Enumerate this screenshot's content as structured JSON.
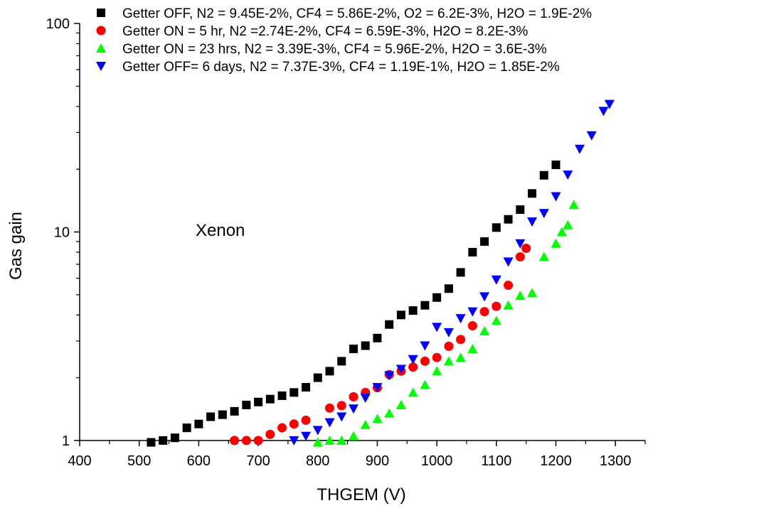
{
  "chart_data": {
    "type": "scatter",
    "xlabel": "THGEM (V)",
    "ylabel": "Gas gain",
    "xlim": [
      400,
      1350
    ],
    "ylim": [
      1,
      100
    ],
    "yscale": "log",
    "x_ticks": [
      "400",
      "500",
      "600",
      "700",
      "800",
      "900",
      "1000",
      "1100",
      "1200",
      "1300"
    ],
    "y_ticks": [
      "1",
      "10",
      "100"
    ],
    "annotation": "Xenon",
    "legend_position": "top",
    "series": [
      {
        "name": "Getter OFF,            N2 =  9.45E-2%, CF4 = 5.86E-2%, O2 = 6.2E-3%, H2O = 1.9E-2%",
        "marker": "square",
        "color": "#000000",
        "points": [
          [
            520,
            0.98
          ],
          [
            540,
            1.0
          ],
          [
            560,
            1.03
          ],
          [
            580,
            1.15
          ],
          [
            600,
            1.2
          ],
          [
            620,
            1.3
          ],
          [
            640,
            1.33
          ],
          [
            660,
            1.38
          ],
          [
            680,
            1.48
          ],
          [
            700,
            1.53
          ],
          [
            720,
            1.58
          ],
          [
            740,
            1.64
          ],
          [
            760,
            1.7
          ],
          [
            780,
            1.8
          ],
          [
            800,
            2.0
          ],
          [
            820,
            2.15
          ],
          [
            840,
            2.4
          ],
          [
            860,
            2.75
          ],
          [
            880,
            2.85
          ],
          [
            900,
            3.1
          ],
          [
            920,
            3.6
          ],
          [
            940,
            4.0
          ],
          [
            960,
            4.2
          ],
          [
            980,
            4.45
          ],
          [
            1000,
            4.85
          ],
          [
            1020,
            5.35
          ],
          [
            1040,
            6.4
          ],
          [
            1060,
            8.0
          ],
          [
            1080,
            9.0
          ],
          [
            1100,
            10.5
          ],
          [
            1120,
            11.5
          ],
          [
            1140,
            12.8
          ],
          [
            1160,
            15.3
          ],
          [
            1180,
            18.7
          ],
          [
            1200,
            21.0
          ]
        ]
      },
      {
        "name": "Getter ON = 5 hr,   N2 =2.74E-2%,  CF4 = 6.59E-3%, H2O = 8.2E-3%",
        "marker": "circle",
        "color": "#ff0000",
        "points": [
          [
            660,
            1.0
          ],
          [
            680,
            1.0
          ],
          [
            700,
            1.0
          ],
          [
            720,
            1.07
          ],
          [
            740,
            1.15
          ],
          [
            760,
            1.2
          ],
          [
            780,
            1.25
          ],
          [
            820,
            1.43
          ],
          [
            840,
            1.47
          ],
          [
            860,
            1.62
          ],
          [
            880,
            1.7
          ],
          [
            900,
            1.79
          ],
          [
            920,
            2.07
          ],
          [
            940,
            2.15
          ],
          [
            960,
            2.25
          ],
          [
            980,
            2.4
          ],
          [
            1000,
            2.5
          ],
          [
            1020,
            2.83
          ],
          [
            1040,
            3.05
          ],
          [
            1060,
            3.55
          ],
          [
            1080,
            4.15
          ],
          [
            1100,
            4.4
          ],
          [
            1120,
            5.55
          ],
          [
            1140,
            7.6
          ],
          [
            1150,
            8.35
          ]
        ]
      },
      {
        "name": "Getter ON = 23 hrs, N2 = 3.39E-3%,  CF4 = 5.96E-2%, H2O = 3.6E-3%",
        "marker": "triangle-up",
        "color": "#00ff00",
        "points": [
          [
            800,
            0.98
          ],
          [
            820,
            1.0
          ],
          [
            840,
            1.0
          ],
          [
            860,
            1.05
          ],
          [
            880,
            1.19
          ],
          [
            900,
            1.27
          ],
          [
            920,
            1.35
          ],
          [
            940,
            1.48
          ],
          [
            960,
            1.7
          ],
          [
            980,
            1.85
          ],
          [
            1000,
            2.15
          ],
          [
            1020,
            2.4
          ],
          [
            1040,
            2.5
          ],
          [
            1060,
            2.75
          ],
          [
            1080,
            3.35
          ],
          [
            1100,
            3.75
          ],
          [
            1120,
            4.45
          ],
          [
            1140,
            4.95
          ],
          [
            1160,
            5.1
          ],
          [
            1180,
            7.6
          ],
          [
            1200,
            8.8
          ],
          [
            1210,
            10.0
          ],
          [
            1220,
            10.8
          ],
          [
            1230,
            13.5
          ]
        ]
      },
      {
        "name": "Getter OFF= 6 days, N2 = 7.37E-3%, CF4 = 1.19E-1%, H2O = 1.85E-2%",
        "marker": "triangle-down",
        "color": "#0000ff",
        "points": [
          [
            760,
            1.0
          ],
          [
            780,
            1.05
          ],
          [
            800,
            1.12
          ],
          [
            820,
            1.22
          ],
          [
            840,
            1.3
          ],
          [
            860,
            1.42
          ],
          [
            880,
            1.6
          ],
          [
            900,
            1.8
          ],
          [
            920,
            2.05
          ],
          [
            940,
            2.2
          ],
          [
            960,
            2.45
          ],
          [
            980,
            2.85
          ],
          [
            1000,
            3.5
          ],
          [
            1020,
            3.3
          ],
          [
            1040,
            3.85
          ],
          [
            1060,
            4.15
          ],
          [
            1080,
            4.9
          ],
          [
            1100,
            5.9
          ],
          [
            1120,
            7.2
          ],
          [
            1140,
            8.8
          ],
          [
            1160,
            11.2
          ],
          [
            1180,
            12.3
          ],
          [
            1200,
            14.8
          ],
          [
            1220,
            18.8
          ],
          [
            1240,
            25.0
          ],
          [
            1260,
            29.0
          ],
          [
            1280,
            38.0
          ],
          [
            1290,
            41.0
          ]
        ]
      }
    ]
  }
}
